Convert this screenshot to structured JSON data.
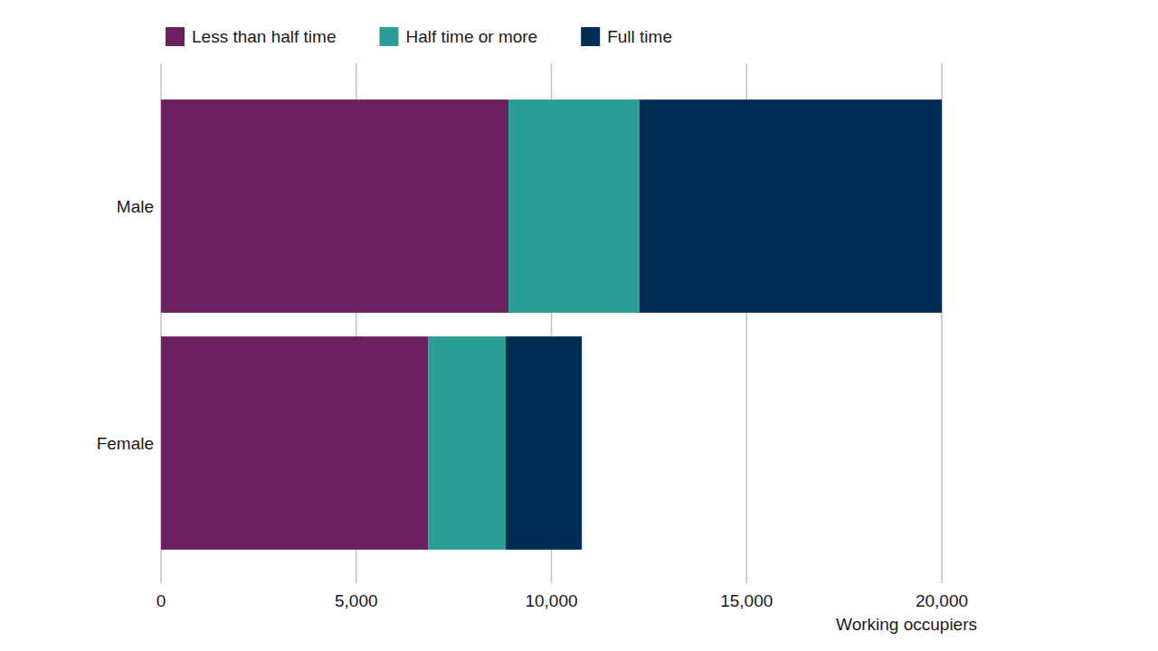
{
  "chart_data": {
    "type": "bar",
    "orientation": "horizontal",
    "stacked": true,
    "grid": true,
    "legend": "top",
    "categories": [
      "Male",
      "Female"
    ],
    "series": [
      {
        "name": "Less than half time",
        "color": "#6a2060",
        "values": [
          8900,
          6850
        ]
      },
      {
        "name": "Half time or more",
        "color": "#2a9d95",
        "values": [
          3350,
          1980
        ]
      },
      {
        "name": "Full time",
        "color": "#002d54",
        "values": [
          7750,
          1950
        ]
      }
    ],
    "xlim": [
      0,
      20000
    ],
    "xticks": [
      0,
      {
        "value": 5000,
        "label": "5,000"
      },
      {
        "value": 10000,
        "label": "10,000"
      },
      {
        "value": 15000,
        "label": "15,000"
      },
      {
        "value": 20000,
        "label": "20,000"
      }
    ],
    "xlabel": "Working occupiers"
  }
}
